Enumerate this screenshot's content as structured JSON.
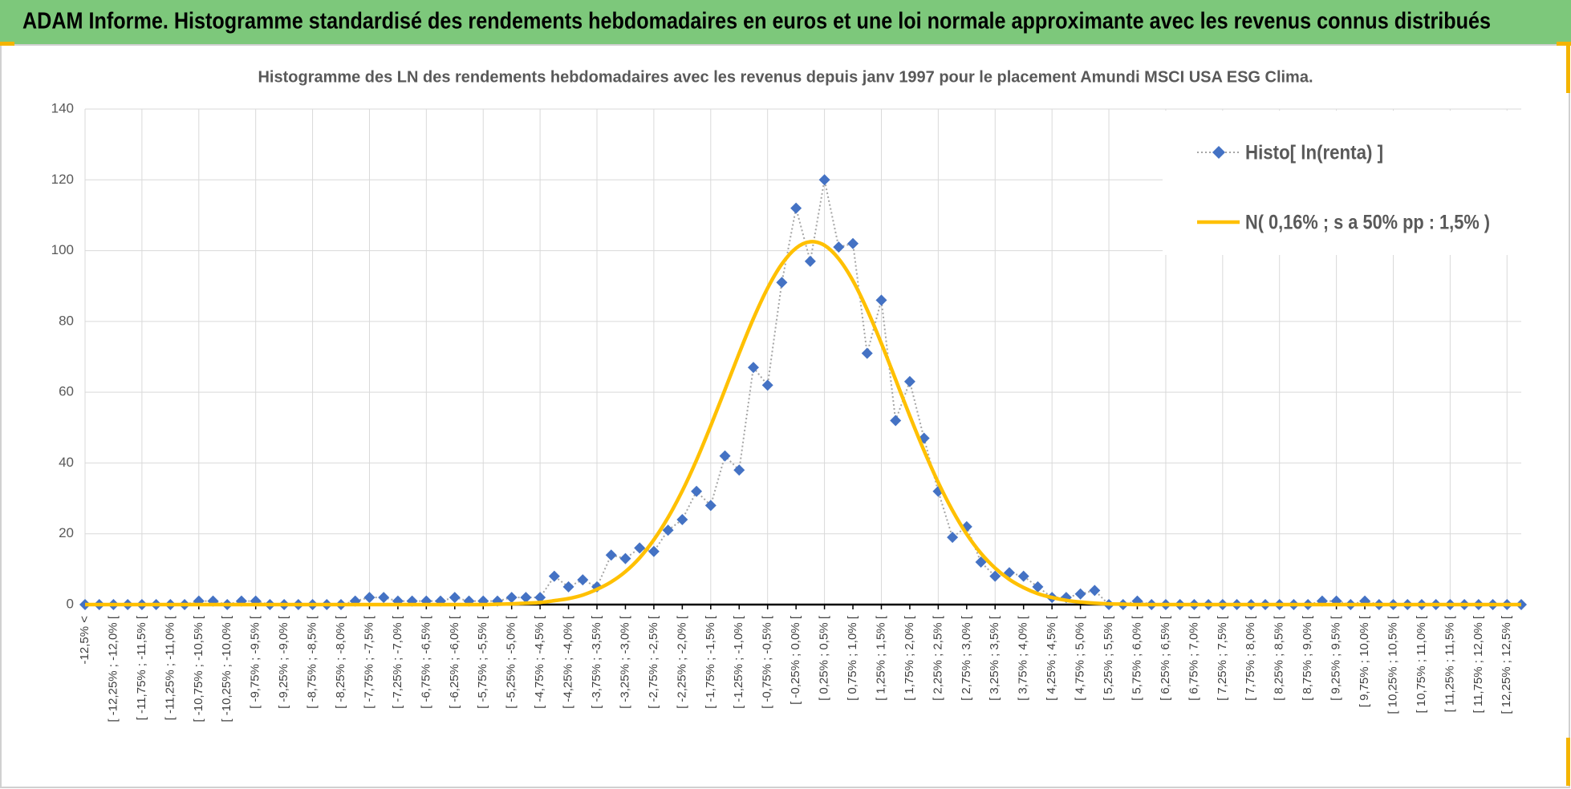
{
  "header": {
    "title": "ADAM Informe. Histogramme standardisé des rendements hebdomadaires en euros et une loi normale approximante avec les revenus connus distribués"
  },
  "chart_data": {
    "type": "line",
    "title": "Histogramme  des LN des rendements hebdomadaires avec les revenus depuis janv 1997 pour le placement Amundi MSCI USA ESG Clima.",
    "categories": [
      "-12,5% <",
      null,
      "[ -12,25% ; -12,0% [",
      null,
      "[ -11,75% ; -11,5% [",
      null,
      "[ -11,25% ; -11,0% [",
      null,
      "[ -10,75% ; -10,5% [",
      null,
      "[ -10,25% ; -10,0% [",
      null,
      "[ -9,75% ; -9,5% [",
      null,
      "[ -9,25% ; -9,0% [",
      null,
      "[ -8,75% ; -8,5% [",
      null,
      "[ -8,25% ; -8,0% [",
      null,
      "[ -7,75% ; -7,5% [",
      null,
      "[ -7,25% ; -7,0% [",
      null,
      "[ -6,75% ; -6,5% [",
      null,
      "[ -6,25% ; -6,0% [",
      null,
      "[ -5,75% ; -5,5% [",
      null,
      "[ -5,25% ; -5,0% [",
      null,
      "[ -4,75% ; -4,5% [",
      null,
      "[ -4,25% ; -4,0% [",
      null,
      "[ -3,75% ; -3,5% [",
      null,
      "[ -3,25% ; -3,0% [",
      null,
      "[ -2,75% ; -2,5% [",
      null,
      "[ -2,25% ; -2,0% [",
      null,
      "[ -1,75% ; -1,5% [",
      null,
      "[ -1,25% ; -1,0% [",
      null,
      "[ -0,75% ; -0,5% [",
      null,
      "[ -0,25% ; 0,0% [",
      null,
      "[ 0,25% ; 0,5% [",
      null,
      "[ 0,75% ; 1,0% [",
      null,
      "[ 1,25% ; 1,5% [",
      null,
      "[ 1,75% ; 2,0% [",
      null,
      "[ 2,25% ; 2,5% [",
      null,
      "[ 2,75% ; 3,0% [",
      null,
      "[ 3,25% ; 3,5% [",
      null,
      "[ 3,75% ; 4,0% [",
      null,
      "[ 4,25% ; 4,5% [",
      null,
      "[ 4,75% ; 5,0% [",
      null,
      "[ 5,25% ; 5,5% [",
      null,
      "[ 5,75% ; 6,0% [",
      null,
      "[ 6,25% ; 6,5% [",
      null,
      "[ 6,75% ; 7,0% [",
      null,
      "[ 7,25% ; 7,5% [",
      null,
      "[ 7,75% ; 8,0% [",
      null,
      "[ 8,25% ; 8,5% [",
      null,
      "[ 8,75% ; 9,0% [",
      null,
      "[ 9,25% ; 9,5% [",
      null,
      "[ 9,75% ; 10,0% [",
      null,
      "[ 10,25% ; 10,5% [",
      null,
      "[ 10,75% ; 11,0% [",
      null,
      "[ 11,25% ; 11,5% [",
      null,
      "[ 11,75% ; 12,0% [",
      null,
      "[ 12,25% ; 12,5% [",
      null
    ],
    "series": [
      {
        "name": "Histo[ ln(renta) ]",
        "color": "#4472c4",
        "line_color": "#a5a5a5",
        "line_style": "dotted",
        "marker": "diamond",
        "values": [
          0,
          0,
          0,
          0,
          0,
          0,
          0,
          0,
          1,
          1,
          0,
          1,
          1,
          0,
          0,
          0,
          0,
          0,
          0,
          1,
          2,
          2,
          1,
          1,
          1,
          1,
          2,
          1,
          1,
          1,
          2,
          2,
          2,
          8,
          5,
          7,
          5,
          14,
          13,
          16,
          15,
          21,
          24,
          32,
          28,
          42,
          38,
          67,
          62,
          91,
          112,
          97,
          120,
          101,
          102,
          71,
          86,
          52,
          63,
          47,
          32,
          19,
          22,
          12,
          8,
          9,
          8,
          5,
          2,
          2,
          3,
          4,
          0,
          0,
          1,
          0,
          0,
          0,
          0,
          0,
          0,
          0,
          0,
          0,
          0,
          0,
          0,
          1,
          1,
          0,
          1,
          0,
          0,
          0,
          0,
          0,
          0,
          0,
          0,
          0,
          0,
          0
        ]
      },
      {
        "name": "N( 0,16% ; s a 50% pp : 1,5% )",
        "color": "#ffc000",
        "line_style": "solid",
        "marker": "none",
        "values": [
          0,
          0,
          0,
          0,
          0,
          0,
          0,
          0,
          0,
          0,
          0,
          0,
          0,
          0,
          0,
          0,
          0,
          0,
          0,
          0,
          0,
          0,
          0,
          0,
          0,
          0,
          0,
          0,
          0,
          0.1,
          0.2,
          0.4,
          0.6,
          1.1,
          1.7,
          2.7,
          4.3,
          6.4,
          9.3,
          13.2,
          18.3,
          24.6,
          32.1,
          40.8,
          50.5,
          60.7,
          71.0,
          80.8,
          89.4,
          96.2,
          100.7,
          102.5,
          101.5,
          97.7,
          91.5,
          83.3,
          73.8,
          63.6,
          53.3,
          43.5,
          34.5,
          26.6,
          19.9,
          14.5,
          10.3,
          7.1,
          4.8,
          3.1,
          2.0,
          1.2,
          0.7,
          0.4,
          0.2,
          0.1,
          0,
          0,
          0,
          0,
          0,
          0,
          0,
          0,
          0,
          0,
          0,
          0,
          0,
          0,
          0,
          0,
          0,
          0,
          0,
          0,
          0,
          0,
          0,
          0,
          0,
          0,
          0,
          0
        ]
      }
    ],
    "ylim": [
      0,
      140
    ],
    "yticks": [
      0,
      20,
      40,
      60,
      80,
      100,
      120,
      140
    ],
    "grid": true,
    "legend": "upper right"
  }
}
